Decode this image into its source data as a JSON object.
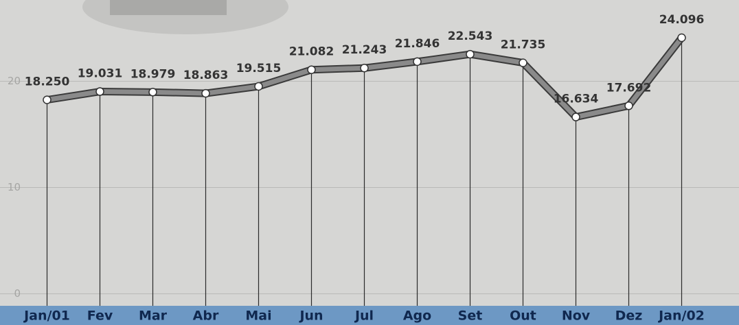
{
  "chart_data": {
    "type": "line",
    "categories": [
      "Jan/01",
      "Fev",
      "Mar",
      "Abr",
      "Mai",
      "Jun",
      "Jul",
      "Ago",
      "Set",
      "Out",
      "Nov",
      "Dez",
      "Jan/02"
    ],
    "values": [
      18.25,
      19.031,
      18.979,
      18.863,
      19.515,
      21.082,
      21.243,
      21.846,
      22.543,
      21.735,
      16.634,
      17.692,
      24.096
    ],
    "value_labels": [
      "18.250",
      "19.031",
      "18.979",
      "18.863",
      "19.515",
      "21.082",
      "21.243",
      "21.846",
      "22.543",
      "21.735",
      "16.634",
      "17.692",
      "24.096"
    ],
    "color": "#8a8a8a",
    "ylim": [
      -1,
      27
    ],
    "yticks": [
      0,
      10,
      20
    ],
    "grid": true
  }
}
